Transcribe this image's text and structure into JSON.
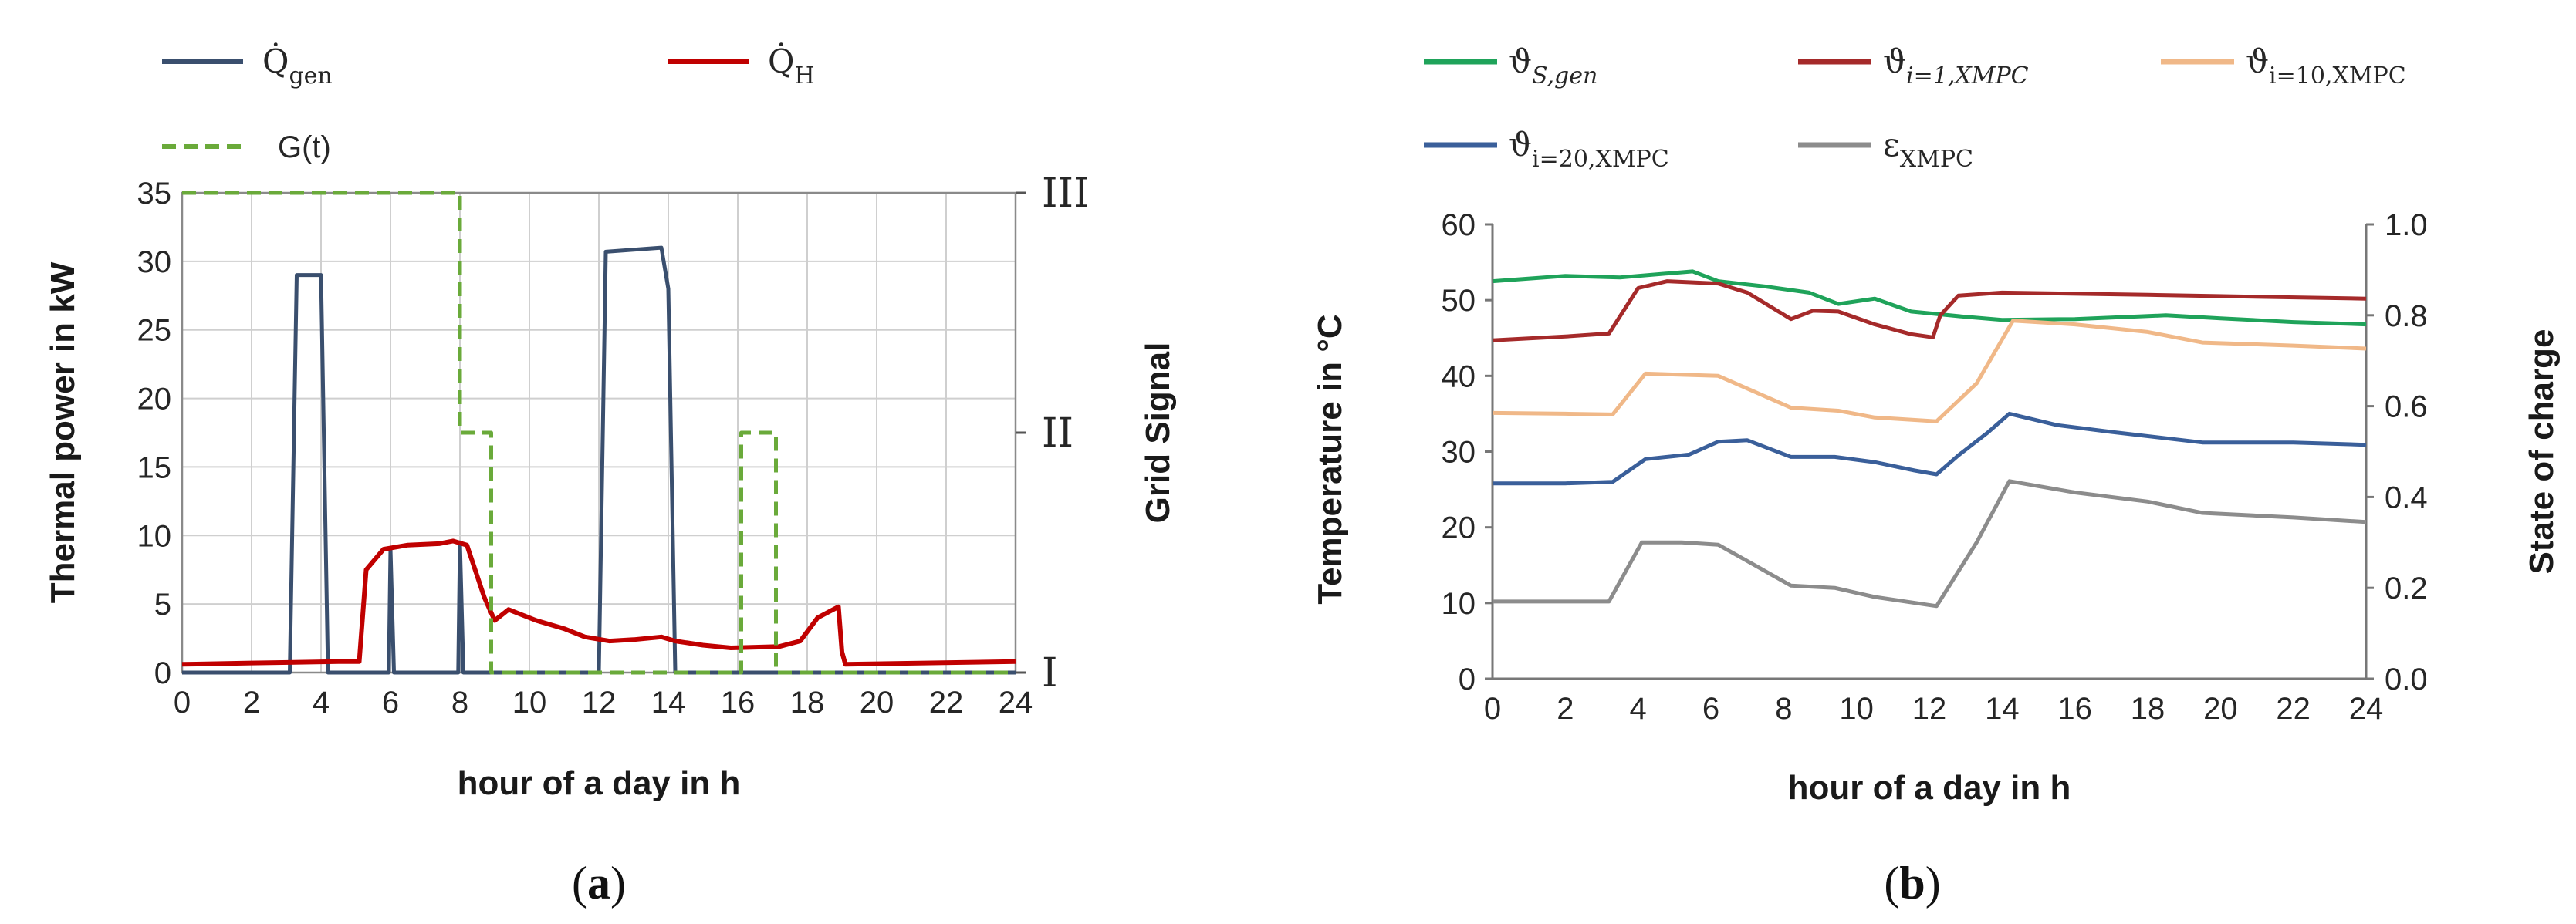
{
  "chart_data": [
    {
      "id": "a",
      "type": "line",
      "caption": {
        "open": "(",
        "letter": "a",
        "close": ")"
      },
      "xlabel": "hour of a day in h",
      "ylabel": "Thermal power in kW",
      "y2label": "Grid Signal",
      "xlim": [
        0,
        24
      ],
      "ylim": [
        0,
        35
      ],
      "xticks": [
        0,
        2,
        4,
        6,
        8,
        10,
        12,
        14,
        16,
        18,
        20,
        22,
        24
      ],
      "yticks": [
        0,
        5,
        10,
        15,
        20,
        25,
        30,
        35
      ],
      "y2ticks": [
        {
          "label": "I",
          "value": 0
        },
        {
          "label": "II",
          "value": 17.5
        },
        {
          "label": "III",
          "value": 35
        }
      ],
      "legend": [
        {
          "base": "Q̇",
          "sub": "gen",
          "color": "#3a4f6e",
          "dash": false
        },
        {
          "base": "Q̇",
          "sub": "H",
          "color": "#c00000",
          "dash": false
        },
        {
          "base": "G(t)",
          "sub": "",
          "color": "#6aaa3a",
          "dash": true
        }
      ],
      "series": [
        {
          "name": "Q_gen",
          "color": "#3a4f6e",
          "width": 5,
          "dash": false,
          "points": [
            [
              0,
              0
            ],
            [
              3.1,
              0
            ],
            [
              3.3,
              29
            ],
            [
              4.0,
              29
            ],
            [
              4.2,
              0
            ],
            [
              5.95,
              0
            ],
            [
              6.0,
              9
            ],
            [
              6.1,
              0
            ],
            [
              7.95,
              0
            ],
            [
              8.0,
              9.5
            ],
            [
              8.1,
              0
            ],
            [
              12.0,
              0
            ],
            [
              12.2,
              30.7
            ],
            [
              13.8,
              31
            ],
            [
              14.0,
              28
            ],
            [
              14.2,
              0
            ],
            [
              24,
              0
            ]
          ]
        },
        {
          "name": "Q_H",
          "color": "#c00000",
          "width": 6,
          "dash": false,
          "points": [
            [
              0,
              0.6
            ],
            [
              2,
              0.7
            ],
            [
              4.5,
              0.8
            ],
            [
              5.1,
              0.8
            ],
            [
              5.3,
              7.5
            ],
            [
              5.8,
              9
            ],
            [
              6.5,
              9.3
            ],
            [
              7.4,
              9.4
            ],
            [
              7.8,
              9.6
            ],
            [
              8.2,
              9.3
            ],
            [
              8.7,
              5.5
            ],
            [
              9.0,
              3.8
            ],
            [
              9.4,
              4.6
            ],
            [
              10.2,
              3.8
            ],
            [
              11.0,
              3.2
            ],
            [
              11.6,
              2.6
            ],
            [
              12.3,
              2.3
            ],
            [
              13.0,
              2.4
            ],
            [
              13.8,
              2.6
            ],
            [
              14.2,
              2.3
            ],
            [
              15.0,
              2.0
            ],
            [
              15.8,
              1.8
            ],
            [
              17.2,
              1.9
            ],
            [
              17.8,
              2.3
            ],
            [
              18.3,
              4.0
            ],
            [
              18.9,
              4.8
            ],
            [
              19.0,
              1.5
            ],
            [
              19.1,
              0.6
            ],
            [
              24,
              0.8
            ]
          ]
        },
        {
          "name": "G(t)",
          "color": "#6aaa3a",
          "width": 5,
          "dash": true,
          "points": [
            [
              0,
              35
            ],
            [
              8.0,
              35
            ],
            [
              8.0,
              17.5
            ],
            [
              8.9,
              17.5
            ],
            [
              8.9,
              0
            ],
            [
              16.1,
              0
            ],
            [
              16.1,
              17.5
            ],
            [
              17.1,
              17.5
            ],
            [
              17.1,
              0
            ],
            [
              24,
              0
            ]
          ]
        }
      ]
    },
    {
      "id": "b",
      "type": "line",
      "caption": {
        "open": "(",
        "letter": "b",
        "close": ")"
      },
      "xlabel": "hour of a day in h",
      "ylabel": "Temperature in °C",
      "y2label": "State of charge",
      "xlim": [
        0,
        24
      ],
      "ylim": [
        0,
        60
      ],
      "y2lim": [
        0,
        1
      ],
      "xticks": [
        0,
        2,
        4,
        6,
        8,
        10,
        12,
        14,
        16,
        18,
        20,
        22,
        24
      ],
      "yticks": [
        0,
        10,
        20,
        30,
        40,
        50,
        60
      ],
      "y2ticks": [
        "0.0",
        "0.2",
        "0.4",
        "0.6",
        "0.8",
        "1.0"
      ],
      "legend": [
        {
          "base": "ϑ",
          "sub": "S,gen",
          "color": "#1fa35a"
        },
        {
          "base": "ϑ",
          "sub": "i=1,XMPC",
          "color": "#a52a2a"
        },
        {
          "base": "ϑ",
          "sub": "i=10,XMPC",
          "color": "#f0b888"
        },
        {
          "base": "ϑ",
          "sub": "i=20,XMPC",
          "color": "#3a5f9a"
        },
        {
          "base": "ε",
          "sub": "XMPC",
          "color": "#8c8c8c"
        }
      ],
      "series": [
        {
          "name": "theta_S_gen",
          "color": "#1fa35a",
          "width": 5,
          "points": [
            [
              0,
              52.5
            ],
            [
              2,
              53.2
            ],
            [
              3.5,
              53
            ],
            [
              5.5,
              53.8
            ],
            [
              6.2,
              52.5
            ],
            [
              7.5,
              51.8
            ],
            [
              8.7,
              51
            ],
            [
              9.5,
              49.5
            ],
            [
              10.5,
              50.2
            ],
            [
              11.5,
              48.5
            ],
            [
              13,
              47.8
            ],
            [
              14,
              47.4
            ],
            [
              16,
              47.5
            ],
            [
              18.5,
              48
            ],
            [
              20,
              47.6
            ],
            [
              22,
              47.1
            ],
            [
              24,
              46.8
            ]
          ]
        },
        {
          "name": "theta_i1",
          "color": "#a52a2a",
          "width": 5,
          "points": [
            [
              0,
              44.7
            ],
            [
              2,
              45.2
            ],
            [
              3.2,
              45.6
            ],
            [
              4.0,
              51.6
            ],
            [
              4.8,
              52.5
            ],
            [
              6.2,
              52.2
            ],
            [
              7.0,
              51
            ],
            [
              8.2,
              47.5
            ],
            [
              8.8,
              48.6
            ],
            [
              9.5,
              48.5
            ],
            [
              10.5,
              46.8
            ],
            [
              11.5,
              45.5
            ],
            [
              12.1,
              45.1
            ],
            [
              12.3,
              48
            ],
            [
              12.8,
              50.6
            ],
            [
              14,
              51
            ],
            [
              18,
              50.7
            ],
            [
              24,
              50.2
            ]
          ]
        },
        {
          "name": "theta_i10",
          "color": "#f0b888",
          "width": 5,
          "points": [
            [
              0,
              35.1
            ],
            [
              2,
              35
            ],
            [
              3.3,
              34.9
            ],
            [
              4.2,
              40.3
            ],
            [
              6.2,
              40
            ],
            [
              8.2,
              35.8
            ],
            [
              9.5,
              35.4
            ],
            [
              10.5,
              34.5
            ],
            [
              12.2,
              34
            ],
            [
              13.3,
              39
            ],
            [
              14.3,
              47.3
            ],
            [
              16,
              46.8
            ],
            [
              18,
              45.8
            ],
            [
              19.5,
              44.4
            ],
            [
              22,
              44
            ],
            [
              24,
              43.6
            ]
          ]
        },
        {
          "name": "theta_i20",
          "color": "#3a5f9a",
          "width": 5,
          "points": [
            [
              0,
              25.8
            ],
            [
              2,
              25.8
            ],
            [
              3.3,
              26
            ],
            [
              4.2,
              29
            ],
            [
              5.4,
              29.6
            ],
            [
              6.2,
              31.3
            ],
            [
              7.0,
              31.5
            ],
            [
              8.2,
              29.3
            ],
            [
              9.4,
              29.3
            ],
            [
              10.5,
              28.6
            ],
            [
              11.6,
              27.5
            ],
            [
              12.2,
              27
            ],
            [
              12.8,
              29.5
            ],
            [
              13.6,
              32.5
            ],
            [
              14.2,
              35
            ],
            [
              15.5,
              33.5
            ],
            [
              17,
              32.6
            ],
            [
              19.5,
              31.2
            ],
            [
              22,
              31.2
            ],
            [
              24,
              30.9
            ]
          ]
        },
        {
          "name": "epsilon",
          "color": "#8c8c8c",
          "width": 5,
          "axis": "y2",
          "points": [
            [
              0,
              0.17
            ],
            [
              2,
              0.17
            ],
            [
              3.2,
              0.17
            ],
            [
              4.1,
              0.3
            ],
            [
              5.2,
              0.3
            ],
            [
              6.2,
              0.295
            ],
            [
              8.2,
              0.205
            ],
            [
              9.4,
              0.2
            ],
            [
              10.5,
              0.18
            ],
            [
              12.2,
              0.16
            ],
            [
              13.3,
              0.3
            ],
            [
              14.2,
              0.435
            ],
            [
              16,
              0.41
            ],
            [
              18,
              0.39
            ],
            [
              19.5,
              0.365
            ],
            [
              22,
              0.355
            ],
            [
              24,
              0.345
            ]
          ]
        }
      ]
    }
  ]
}
